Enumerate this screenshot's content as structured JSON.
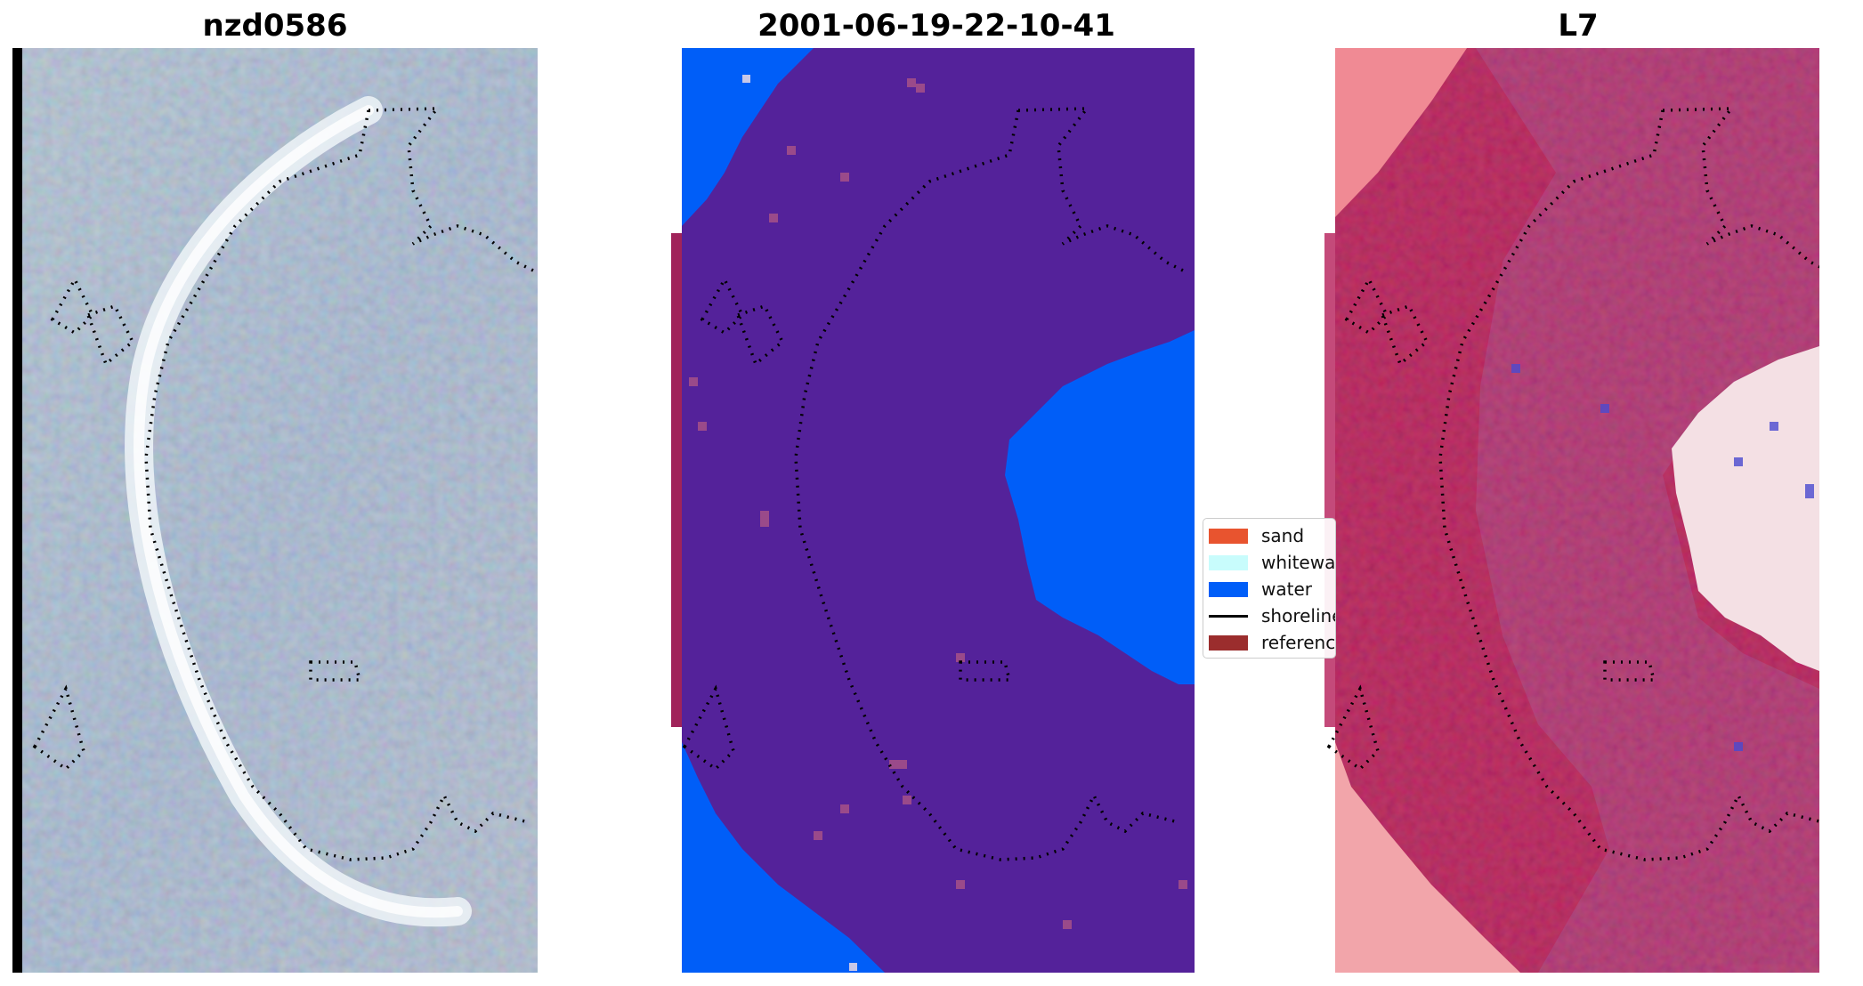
{
  "panels": [
    {
      "title": "nzd0586"
    },
    {
      "title": "2001-06-19-22-10-41"
    },
    {
      "title": "L7"
    }
  ],
  "legend": {
    "items": [
      {
        "label": "sand",
        "color": "#e8542f",
        "kind": "patch"
      },
      {
        "label": "whitewater",
        "color": "#c8fcfc",
        "kind": "patch"
      },
      {
        "label": "water",
        "color": "#005ef8",
        "kind": "patch"
      },
      {
        "label": "shoreline",
        "color": "#000000",
        "kind": "line"
      },
      {
        "label": "reference",
        "color": "#9b2d2d",
        "kind": "patch"
      }
    ]
  },
  "colors": {
    "classification_background": "#54229a",
    "classification_water": "#005ef8",
    "reference_band": "#a0235a",
    "index_water_side": "#c41e52",
    "index_land_side": "#d0486e",
    "image_base": "#b3c0d6"
  }
}
